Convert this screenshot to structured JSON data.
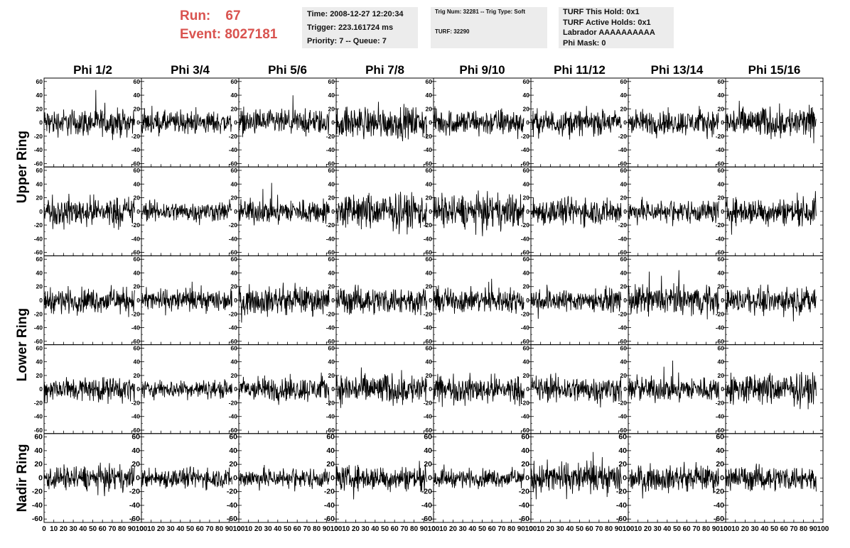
{
  "header": {
    "run_label": "Run:",
    "run_value": "67",
    "event_label": "Event:",
    "event_value": "8027181",
    "time": "Time: 2008-12-27 12:20:34",
    "trigger": "Trigger: 223.161724 ms",
    "priority": "Priority: 7 -- Queue: 7",
    "trig_num": "Trig Num: 32281 -- Trig Type: Soft",
    "turf": "TURF: 32290",
    "turf_this_hold": "TURF This Hold: 0x1",
    "turf_active_holds": "TURF Active Holds: 0x1",
    "labrador": "Labrador AAAAAAAAAA",
    "phi_mask": "Phi Mask: 0"
  },
  "chart_data": {
    "type": "line",
    "columns": [
      "Phi 1/2",
      "Phi 3/4",
      "Phi 5/6",
      "Phi 7/8",
      "Phi 9/10",
      "Phi 11/12",
      "Phi 13/14",
      "Phi 15/16"
    ],
    "ring_labels": [
      "Upper Ring",
      "Lower Ring",
      "Nadir Ring"
    ],
    "rows_per_ring": [
      2,
      2,
      1
    ],
    "xlim": [
      0,
      100
    ],
    "ylim": [
      -65,
      65
    ],
    "x_ticks": [
      0,
      10,
      20,
      30,
      40,
      50,
      60,
      70,
      80,
      90,
      100
    ],
    "x_tick_labels": [
      "0",
      "10",
      "20",
      "30",
      "40",
      "50",
      "60",
      "70",
      "80",
      "90",
      "100"
    ],
    "y_ticks": [
      60,
      40,
      20,
      0,
      -20,
      -40,
      -60
    ],
    "y_tick_labels": [
      "60",
      "40",
      "20",
      "0",
      "-20",
      "-40",
      "-60"
    ],
    "samples_per_trace": 260,
    "trace_x_range": [
      0,
      93
    ],
    "trace_amplitude": [
      [
        12,
        10,
        11,
        14,
        12,
        11,
        11,
        14
      ],
      [
        13,
        9,
        11,
        16,
        15,
        12,
        10,
        12
      ],
      [
        11,
        10,
        12,
        12,
        11,
        10,
        13,
        11
      ],
      [
        11,
        8,
        11,
        14,
        12,
        12,
        11,
        14
      ],
      [
        11,
        9,
        9,
        11,
        8,
        14,
        11,
        11
      ]
    ],
    "line_color": "#000000"
  }
}
